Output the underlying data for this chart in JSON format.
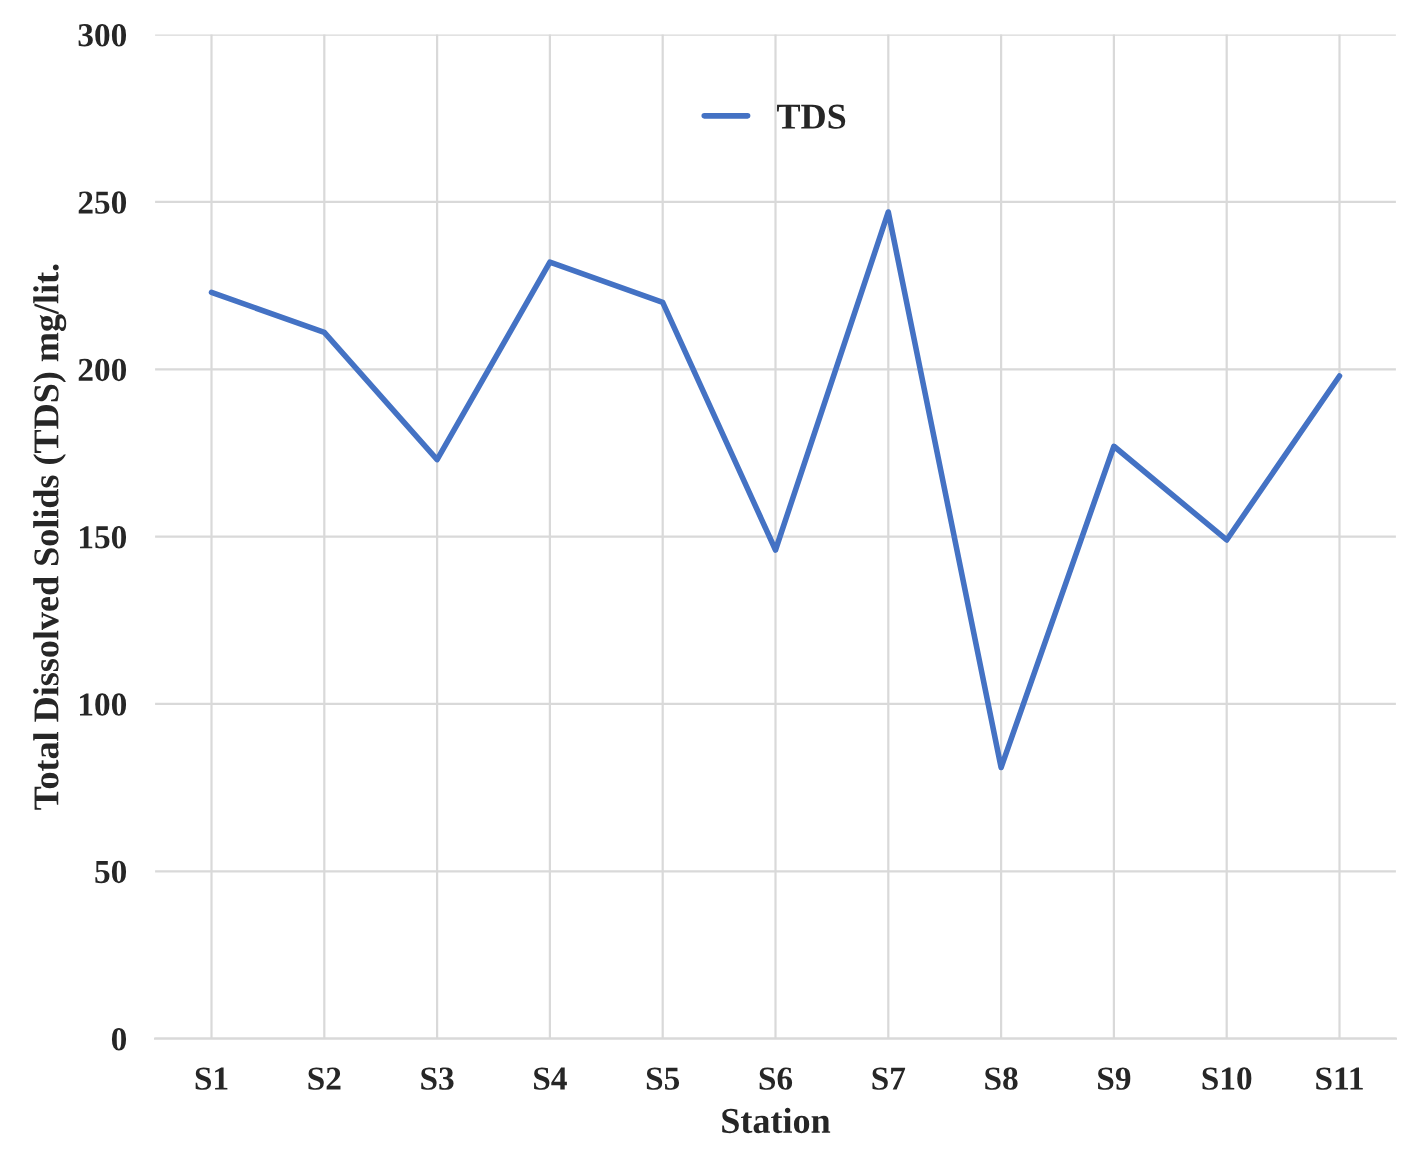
{
  "chart_data": {
    "type": "line",
    "xlabel": "Station",
    "ylabel": "Total Dissolved Solids (TDS) mg/lit.",
    "categories": [
      "S1",
      "S2",
      "S3",
      "S4",
      "S5",
      "S6",
      "S7",
      "S8",
      "S9",
      "S10",
      "S11"
    ],
    "series": [
      {
        "name": "TDS",
        "color": "#4472c4",
        "values": [
          223,
          211,
          173,
          232,
          220,
          146,
          247,
          81,
          177,
          149,
          198
        ]
      }
    ],
    "ylim": [
      0,
      300
    ],
    "yticks": [
      0,
      50,
      100,
      150,
      200,
      250,
      300
    ],
    "grid": true,
    "legend": "top",
    "marker": "none",
    "line_style": "solid"
  }
}
